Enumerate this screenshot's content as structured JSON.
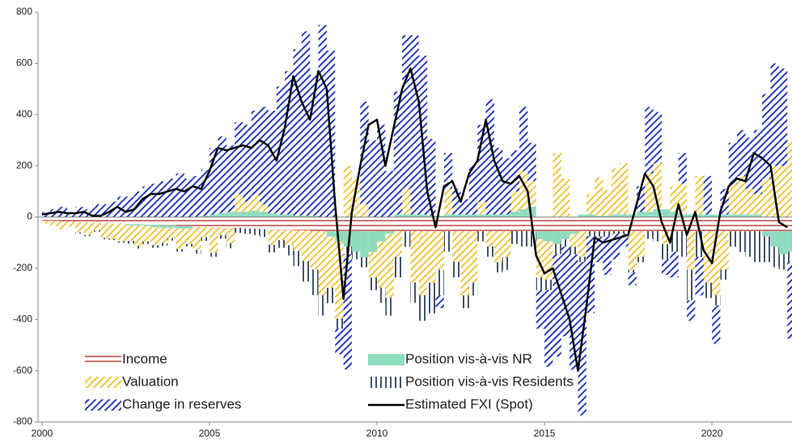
{
  "chart_data": {
    "type": "bar",
    "legend": "lower left",
    "grid": false,
    "xlim": [
      1999.88,
      2022.39
    ],
    "ylim": [
      -800,
      800
    ],
    "xticks": [
      2000,
      2005,
      2010,
      2015,
      2020
    ],
    "yticks": [
      800,
      600,
      400,
      200,
      0,
      -200,
      -400,
      -600,
      -800
    ],
    "x": [
      2000,
      2000.25,
      2000.5,
      2000.75,
      2001,
      2001.25,
      2001.5,
      2001.75,
      2002,
      2002.25,
      2002.5,
      2002.75,
      2003,
      2003.25,
      2003.5,
      2003.75,
      2004,
      2004.25,
      2004.5,
      2004.75,
      2005,
      2005.25,
      2005.5,
      2005.75,
      2006,
      2006.25,
      2006.5,
      2006.75,
      2007,
      2007.25,
      2007.5,
      2007.75,
      2008,
      2008.25,
      2008.5,
      2008.75,
      2009,
      2009.25,
      2009.5,
      2009.75,
      2010,
      2010.25,
      2010.5,
      2010.75,
      2011,
      2011.25,
      2011.5,
      2011.75,
      2012,
      2012.25,
      2012.5,
      2012.75,
      2013,
      2013.25,
      2013.5,
      2013.75,
      2014,
      2014.25,
      2014.5,
      2014.75,
      2015,
      2015.25,
      2015.5,
      2015.75,
      2016,
      2016.25,
      2016.5,
      2016.75,
      2017,
      2017.25,
      2017.5,
      2017.75,
      2018,
      2018.25,
      2018.5,
      2018.75,
      2019,
      2019.25,
      2019.5,
      2019.75,
      2020,
      2020.25,
      2020.5,
      2020.75,
      2021,
      2021.25,
      2021.5,
      2021.75,
      2022,
      2022.25
    ],
    "series": [
      {
        "name": "Income",
        "color": "#c0504d",
        "pattern": "hlines",
        "values": [
          -15,
          -15,
          -18,
          -18,
          -20,
          -20,
          -22,
          -22,
          -25,
          -25,
          -28,
          -28,
          -30,
          -30,
          -32,
          -32,
          -35,
          -35,
          -38,
          -38,
          -40,
          -40,
          -42,
          -42,
          -45,
          -45,
          -48,
          -48,
          -50,
          -50,
          -52,
          -52,
          -55,
          -55,
          -56,
          -56,
          -55,
          -55,
          -56,
          -56,
          -55,
          -55,
          -56,
          -56,
          -55,
          -55,
          -56,
          -56,
          -55,
          -55,
          -56,
          -56,
          -55,
          -55,
          -56,
          -56,
          -55,
          -55,
          -56,
          -56,
          -55,
          -55,
          -56,
          -56,
          -55,
          -55,
          -56,
          -56,
          -55,
          -55,
          -56,
          -56,
          -55,
          -55,
          -56,
          -56,
          -55,
          -55,
          -56,
          -56,
          -55,
          -55,
          -56,
          -56,
          -55,
          -55,
          -56,
          -56,
          -55,
          -55
        ]
      },
      {
        "name": "Position vis-à-vis NR",
        "color": "#8fdcbf",
        "pattern": "solid",
        "values": [
          0,
          0,
          0,
          0,
          0,
          0,
          0,
          0,
          0,
          0,
          -5,
          -5,
          -5,
          -10,
          -10,
          -10,
          -10,
          -10,
          0,
          5,
          10,
          15,
          20,
          20,
          20,
          25,
          20,
          15,
          10,
          10,
          5,
          5,
          5,
          0,
          -20,
          -40,
          -60,
          -80,
          -100,
          -80,
          -40,
          -10,
          10,
          10,
          10,
          10,
          5,
          5,
          10,
          10,
          10,
          10,
          10,
          10,
          10,
          10,
          20,
          30,
          40,
          -30,
          -40,
          -50,
          -30,
          -10,
          10,
          10,
          5,
          5,
          10,
          10,
          10,
          20,
          20,
          30,
          30,
          20,
          10,
          10,
          10,
          10,
          10,
          10,
          10,
          10,
          10,
          10,
          -20,
          -60,
          -90,
          -80
        ]
      },
      {
        "name": "Valuation",
        "color": "#f0c43c",
        "pattern": "diag",
        "values": [
          -10,
          -20,
          -30,
          -20,
          -40,
          -50,
          -30,
          -60,
          -60,
          -70,
          -60,
          -80,
          -60,
          -70,
          -60,
          -40,
          -80,
          -60,
          -90,
          -40,
          -100,
          -30,
          -60,
          70,
          40,
          60,
          30,
          -60,
          -40,
          -60,
          -80,
          -120,
          -150,
          -250,
          -200,
          -300,
          200,
          150,
          50,
          -100,
          -180,
          -250,
          -100,
          100,
          -200,
          -250,
          -200,
          -150,
          100,
          -120,
          -250,
          -200,
          50,
          -60,
          -120,
          -100,
          80,
          150,
          100,
          -150,
          -150,
          250,
          150,
          -50,
          -100,
          80,
          150,
          100,
          180,
          200,
          -150,
          -100,
          150,
          180,
          -50,
          100,
          120,
          -150,
          150,
          -200,
          -250,
          -150,
          120,
          150,
          100,
          80,
          150,
          200,
          200,
          300
        ]
      },
      {
        "name": "Position vis-à-vis Residents",
        "color": "#44546a",
        "pattern": "vlines",
        "values": [
          0,
          0,
          0,
          0,
          -5,
          -5,
          -5,
          -5,
          -5,
          -5,
          -10,
          -10,
          -10,
          -10,
          -10,
          -10,
          -10,
          -10,
          -15,
          -15,
          -15,
          -15,
          -20,
          -20,
          -20,
          -25,
          -30,
          -30,
          -30,
          -40,
          -60,
          -80,
          -100,
          -80,
          -60,
          -40,
          -30,
          -30,
          -40,
          -50,
          -60,
          -70,
          -80,
          -60,
          -80,
          -100,
          -120,
          -100,
          -80,
          -60,
          -50,
          -50,
          -40,
          -40,
          -40,
          -50,
          -50,
          -60,
          -60,
          -50,
          -40,
          -40,
          -30,
          -30,
          -20,
          -20,
          -20,
          -20,
          -10,
          -10,
          -10,
          -20,
          -30,
          -40,
          -60,
          -80,
          -100,
          -120,
          -100,
          -60,
          -40,
          -40,
          -60,
          -80,
          -100,
          -120,
          -100,
          -80,
          -60,
          -40
        ]
      },
      {
        "name": "Change in reserves",
        "color": "#2a3cb8",
        "pattern": "diag",
        "values": [
          20,
          30,
          40,
          20,
          40,
          30,
          50,
          50,
          60,
          80,
          80,
          100,
          120,
          130,
          140,
          150,
          170,
          150,
          160,
          180,
          260,
          300,
          260,
          280,
          300,
          330,
          380,
          400,
          500,
          560,
          650,
          720,
          550,
          750,
          650,
          -100,
          -450,
          0,
          400,
          300,
          360,
          180,
          480,
          600,
          700,
          620,
          300,
          -50,
          140,
          100,
          60,
          190,
          300,
          450,
          260,
          220,
          160,
          250,
          150,
          -150,
          -300,
          -400,
          -350,
          -450,
          -600,
          -300,
          -100,
          -150,
          -100,
          -50,
          -50,
          100,
          260,
          200,
          -60,
          -100,
          120,
          -80,
          -150,
          150,
          -150,
          100,
          160,
          180,
          200,
          250,
          330,
          400,
          380,
          -300
        ]
      },
      {
        "name": "Estimated FXI (Spot)",
        "color": "#000000",
        "type": "line",
        "values": [
          10,
          15,
          20,
          15,
          15,
          20,
          5,
          5,
          20,
          40,
          20,
          30,
          70,
          90,
          90,
          100,
          110,
          100,
          120,
          110,
          180,
          270,
          260,
          270,
          280,
          270,
          300,
          280,
          220,
          350,
          550,
          450,
          380,
          570,
          500,
          50,
          -320,
          20,
          200,
          360,
          380,
          200,
          350,
          500,
          580,
          450,
          100,
          -40,
          120,
          140,
          60,
          170,
          220,
          380,
          220,
          140,
          130,
          160,
          100,
          -150,
          -220,
          -200,
          -300,
          -400,
          -600,
          -350,
          -80,
          -100,
          -90,
          -80,
          -70,
          50,
          170,
          120,
          -20,
          -100,
          50,
          -70,
          20,
          -130,
          -180,
          20,
          120,
          150,
          140,
          250,
          230,
          200,
          -20,
          -40
        ]
      }
    ]
  }
}
